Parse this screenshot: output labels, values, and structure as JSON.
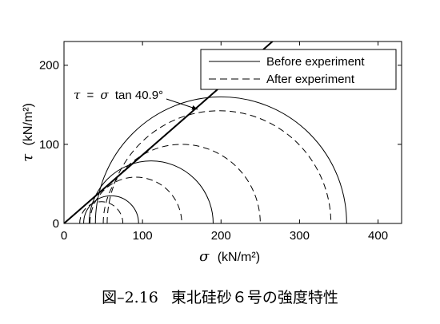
{
  "caption": {
    "label": "図–2.16",
    "text": "東北硅砂６号の強度特性"
  },
  "chart_data": {
    "type": "line",
    "chart_subtype": "mohr_circles",
    "xlabel_symbol": "σ",
    "xlabel_unit": "(kN/m²)",
    "ylabel_symbol": "τ",
    "ylabel_unit": "(kN/m²)",
    "xlim": [
      0,
      430
    ],
    "ylim": [
      0,
      230
    ],
    "xticks": [
      0,
      100,
      200,
      300,
      400
    ],
    "yticks": [
      0,
      100,
      200
    ],
    "grid": false,
    "legend_position": "top-right",
    "series": [
      {
        "name": "Before experiment",
        "line_style": "solid",
        "circles": [
          {
            "sigma3": 25,
            "sigma1": 95
          },
          {
            "sigma3": 32,
            "sigma1": 190
          },
          {
            "sigma3": 40,
            "sigma1": 360
          }
        ]
      },
      {
        "name": "After experiment",
        "line_style": "dashed",
        "circles": [
          {
            "sigma3": 20,
            "sigma1": 75
          },
          {
            "sigma3": 33,
            "sigma1": 150
          },
          {
            "sigma3": 50,
            "sigma1": 250
          },
          {
            "sigma3": 55,
            "sigma1": 340
          }
        ]
      }
    ],
    "failure_envelope": {
      "label_lhs": "τ",
      "label_eq": "=",
      "label_sigma": "σ",
      "label_rhs": "tan 40.9°",
      "friction_angle_deg": 40.9
    }
  }
}
